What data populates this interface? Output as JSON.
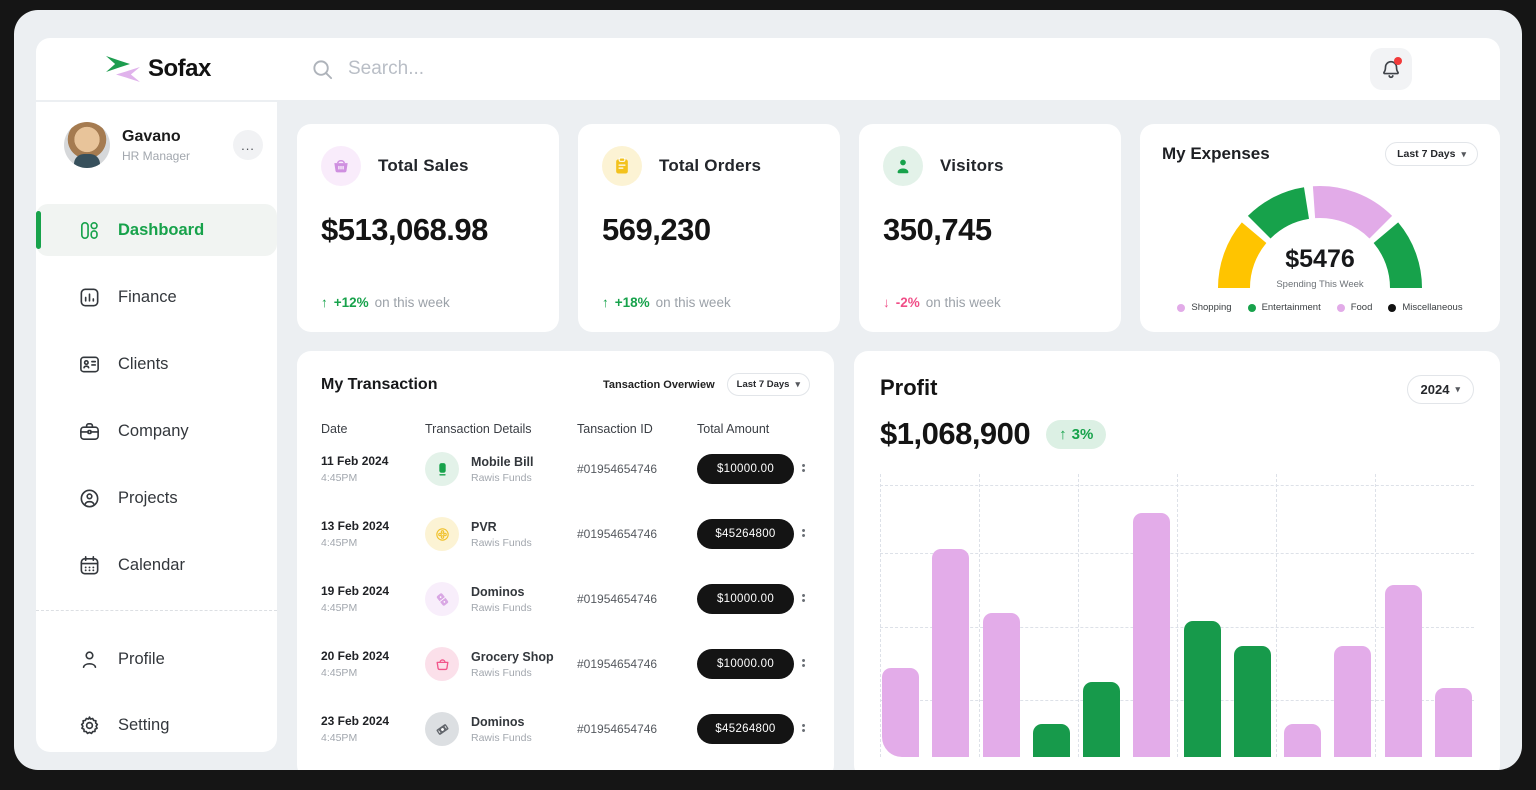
{
  "app": {
    "logo_text": "Sofax"
  },
  "header": {
    "search_placeholder": "Search..."
  },
  "sidebar": {
    "user": {
      "name": "Gavano",
      "role": "HR Manager",
      "more_label": "..."
    },
    "nav": [
      {
        "id": "dashboard",
        "label": "Dashboard",
        "icon": "dashboard-icon",
        "active": true
      },
      {
        "id": "finance",
        "label": "Finance",
        "icon": "finance-icon",
        "active": false
      },
      {
        "id": "clients",
        "label": "Clients",
        "icon": "clients-icon",
        "active": false
      },
      {
        "id": "company",
        "label": "Company",
        "icon": "company-icon",
        "active": false
      },
      {
        "id": "projects",
        "label": "Projects",
        "icon": "projects-icon",
        "active": false
      },
      {
        "id": "calendar",
        "label": "Calendar",
        "icon": "calendar-icon",
        "active": false
      }
    ],
    "nav_secondary": [
      {
        "id": "profile",
        "label": "Profile",
        "icon": "profile-icon",
        "active": false
      },
      {
        "id": "setting",
        "label": "Setting",
        "icon": "setting-icon",
        "active": false
      }
    ]
  },
  "stats": [
    {
      "id": "total-sales",
      "title": "Total Sales",
      "value": "$513,068.98",
      "trend_dir": "up",
      "trend_pct": "+12%",
      "trend_suffix": "on this week",
      "icon": "basket-icon",
      "icon_color": "#cf8fe0",
      "icon_bg": "#f9ecfb"
    },
    {
      "id": "total-orders",
      "title": "Total Orders",
      "value": "569,230",
      "trend_dir": "up",
      "trend_pct": "+18%",
      "trend_suffix": "on this week",
      "icon": "clipboard-icon",
      "icon_color": "#f3c21d",
      "icon_bg": "#fcf3d4"
    },
    {
      "id": "visitors",
      "title": "Visitors",
      "value": "350,745",
      "trend_dir": "down",
      "trend_pct": "-2%",
      "trend_suffix": "on this week",
      "icon": "person-icon",
      "icon_color": "#17a24b",
      "icon_bg": "#e3f2e9"
    }
  ],
  "expenses": {
    "title": "My Expenses",
    "range_label": "Last 7 Days",
    "amount": "$5476",
    "caption": "Spending This Week",
    "legend": [
      {
        "label": "Shopping",
        "color": "#e2abe8"
      },
      {
        "label": "Entertainment",
        "color": "#17a24b"
      },
      {
        "label": "Food",
        "color": "#e2abe8"
      },
      {
        "label": "Miscellaneous",
        "color": "#111111"
      }
    ]
  },
  "transactions": {
    "title": "My Transaction",
    "overview_label": "Tansaction Overwiew",
    "range_label": "Last 7 Days",
    "columns": [
      "Date",
      "Transaction Details",
      "Tansaction ID",
      "Total Amount"
    ],
    "rows": [
      {
        "date": "11 Feb 2024",
        "time": "4:45PM",
        "name": "Mobile Bill",
        "fund": "Rawis Funds",
        "icon": "mobile-icon",
        "icon_color": "#17a24b",
        "icon_bg": "#e3f2e9",
        "tx_id": "#01954654746",
        "amount": "$10000.00"
      },
      {
        "date": "13 Feb 2024",
        "time": "4:45PM",
        "name": "PVR",
        "fund": "Rawis Funds",
        "icon": "film-reel-icon",
        "icon_color": "#f0c12c",
        "icon_bg": "#fcf3d4",
        "tx_id": "#01954654746",
        "amount": "$45264800"
      },
      {
        "date": "19 Feb 2024",
        "time": "4:45PM",
        "name": "Dominos",
        "fund": "Rawis Funds",
        "icon": "domino-icon",
        "icon_color": "#d9a7e4",
        "icon_bg": "#f8eefb",
        "tx_id": "#01954654746",
        "amount": "$10000.00"
      },
      {
        "date": "20 Feb 2024",
        "time": "4:45PM",
        "name": "Grocery Shop",
        "fund": "Rawis Funds",
        "icon": "grocery-basket-icon",
        "icon_color": "#f2558b",
        "icon_bg": "#fbe0ea",
        "tx_id": "#01954654746",
        "amount": "$10000.00"
      },
      {
        "date": "23 Feb 2024",
        "time": "4:45PM",
        "name": "Dominos",
        "fund": "Rawis Funds",
        "icon": "banknote-icon",
        "icon_color": "#63676d",
        "icon_bg": "#dcdfe2",
        "tx_id": "#01954654746",
        "amount": "$45264800"
      }
    ]
  },
  "profit": {
    "title": "Profit",
    "year_label": "2024",
    "value": "$1,068,900",
    "trend_pct": "3%",
    "trend_dir": "up"
  },
  "chart_data": [
    {
      "type": "gauge",
      "title": "My Expenses",
      "center_value": "$5476",
      "caption": "Spending This Week",
      "range_label": "Last 7 Days",
      "segments": [
        {
          "color": "#ffc400",
          "start_deg": 180,
          "end_deg": 140
        },
        {
          "color": "#17a24b",
          "start_deg": 135,
          "end_deg": 99
        },
        {
          "color": "#e2abe8",
          "start_deg": 94,
          "end_deg": 45
        },
        {
          "color": "#17a24b",
          "start_deg": 40,
          "end_deg": 0
        }
      ],
      "legend": [
        "Shopping",
        "Entertainment",
        "Food",
        "Miscellaneous"
      ]
    },
    {
      "type": "bar",
      "title": "Profit",
      "value_label": "$1,068,900",
      "change": "+3%",
      "year": "2024",
      "axis_labels_visible": false,
      "grid": "dashed",
      "bars_relative_height_pct": [
        32,
        75,
        52,
        12,
        27,
        88,
        49,
        40,
        12,
        40,
        62,
        25
      ],
      "bar_colors": [
        "#e3ace9",
        "#e3ace9",
        "#e3ace9",
        "#179a4b",
        "#179a4b",
        "#e3ace9",
        "#179a4b",
        "#179a4b",
        "#e3ace9",
        "#e3ace9",
        "#e3ace9",
        "#e3ace9"
      ]
    }
  ]
}
